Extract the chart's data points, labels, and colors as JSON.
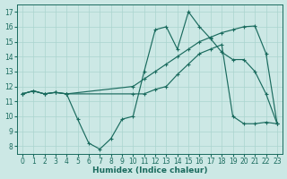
{
  "xlabel": "Humidex (Indice chaleur)",
  "xlim": [
    -0.5,
    23.5
  ],
  "ylim": [
    7.5,
    17.5
  ],
  "xticks": [
    0,
    1,
    2,
    3,
    4,
    5,
    6,
    7,
    8,
    9,
    10,
    11,
    12,
    13,
    14,
    15,
    16,
    17,
    18,
    19,
    20,
    21,
    22,
    23
  ],
  "yticks": [
    8,
    9,
    10,
    11,
    12,
    13,
    14,
    15,
    16,
    17
  ],
  "bg_color": "#cce8e5",
  "line_color": "#1a6b5e",
  "grid_color": "#aad4cf",
  "lines": [
    {
      "x": [
        0,
        1,
        2,
        3,
        4,
        10,
        11,
        12,
        13,
        14,
        15,
        16,
        17,
        18,
        19,
        20,
        21,
        22,
        23
      ],
      "y": [
        11.5,
        11.7,
        11.5,
        11.6,
        11.5,
        12.0,
        12.5,
        13.0,
        13.5,
        14.0,
        14.5,
        15.0,
        15.3,
        15.6,
        15.8,
        16.0,
        16.05,
        14.2,
        9.5
      ],
      "marker": true
    },
    {
      "x": [
        0,
        1,
        2,
        3,
        4,
        5,
        6,
        7,
        8,
        9,
        10,
        11,
        12,
        13,
        14,
        15,
        16,
        17,
        18,
        19,
        20,
        21,
        22,
        23
      ],
      "y": [
        11.5,
        11.7,
        11.5,
        11.6,
        11.5,
        9.8,
        8.2,
        7.8,
        8.5,
        9.8,
        10.0,
        13.0,
        15.8,
        16.0,
        14.5,
        17.0,
        16.0,
        15.2,
        14.3,
        13.8,
        13.8,
        13.0,
        11.5,
        9.5
      ],
      "marker": true
    },
    {
      "x": [
        0,
        1,
        2,
        3,
        4,
        10,
        11,
        12,
        13,
        14,
        15,
        16,
        17,
        18,
        19,
        20,
        21,
        22,
        23
      ],
      "y": [
        11.5,
        11.7,
        11.5,
        11.6,
        11.5,
        11.5,
        11.5,
        11.8,
        12.0,
        12.8,
        13.5,
        14.2,
        14.5,
        14.8,
        10.0,
        9.5,
        9.5,
        9.6,
        9.5
      ],
      "marker": true
    }
  ]
}
